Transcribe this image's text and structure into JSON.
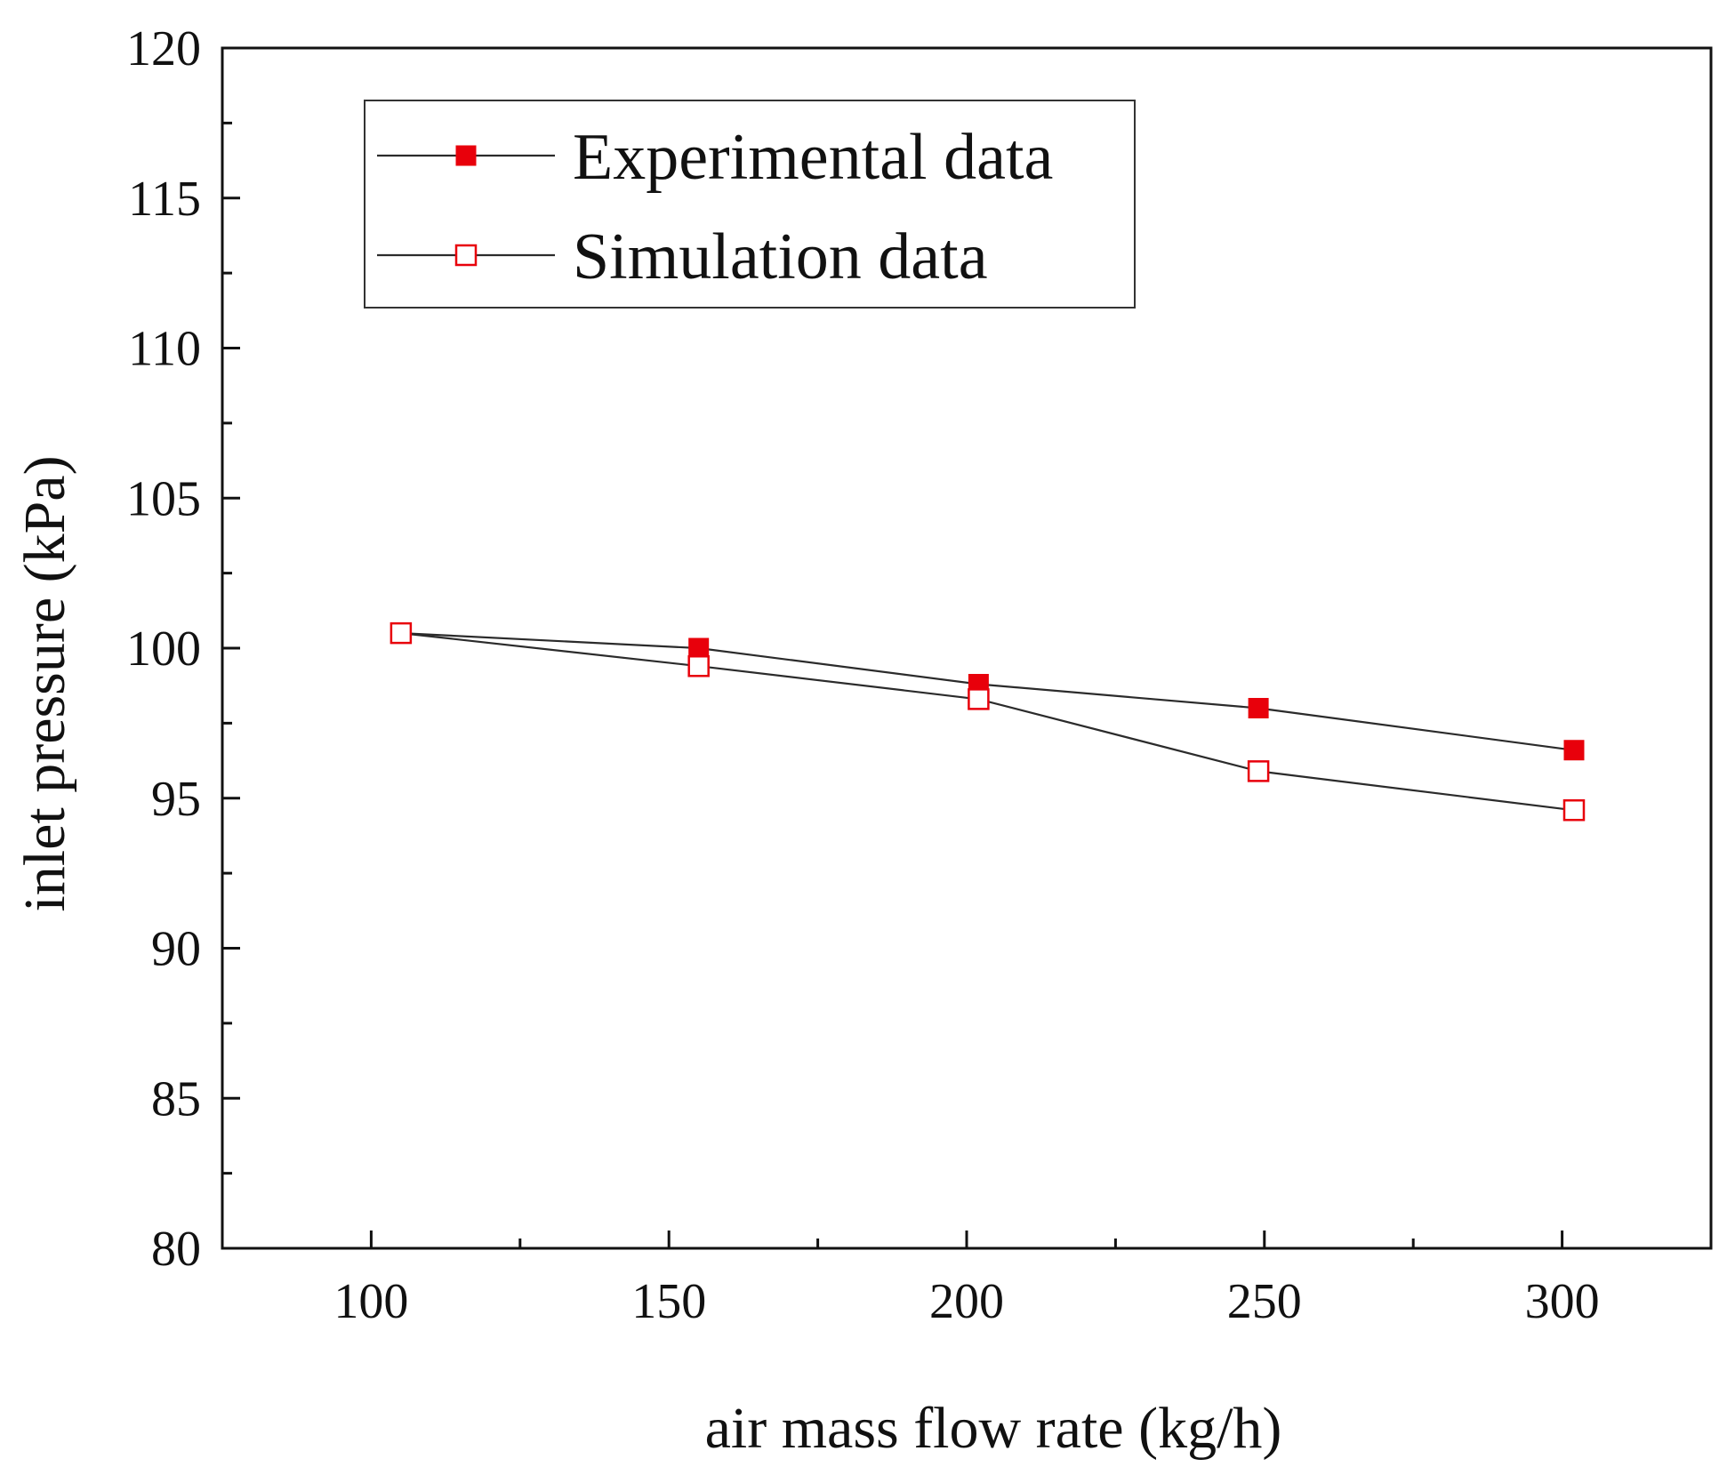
{
  "chart_data": {
    "type": "line",
    "xlabel": "air mass flow rate (kg/h)",
    "ylabel": "inlet pressure (kPa)",
    "xlim": [
      75,
      325
    ],
    "ylim": [
      80,
      120
    ],
    "x_ticks": [
      "100",
      "150",
      "200",
      "250",
      "300"
    ],
    "y_ticks": [
      "80",
      "85",
      "90",
      "95",
      "100",
      "105",
      "110",
      "115",
      "120"
    ],
    "grid": false,
    "legend_position": "top-left",
    "series": [
      {
        "name": "Experimental data",
        "marker": "filled-square",
        "color": "#e8000b",
        "line_color": "#2b2b2b",
        "x": [
          105,
          155,
          202,
          249,
          302
        ],
        "y": [
          100.5,
          100.0,
          98.8,
          98.0,
          96.6
        ]
      },
      {
        "name": "Simulation data",
        "marker": "open-square",
        "color": "#e8000b",
        "line_color": "#2b2b2b",
        "x": [
          105,
          155,
          202,
          249,
          302
        ],
        "y": [
          100.5,
          99.4,
          98.3,
          95.9,
          94.6
        ]
      }
    ]
  }
}
